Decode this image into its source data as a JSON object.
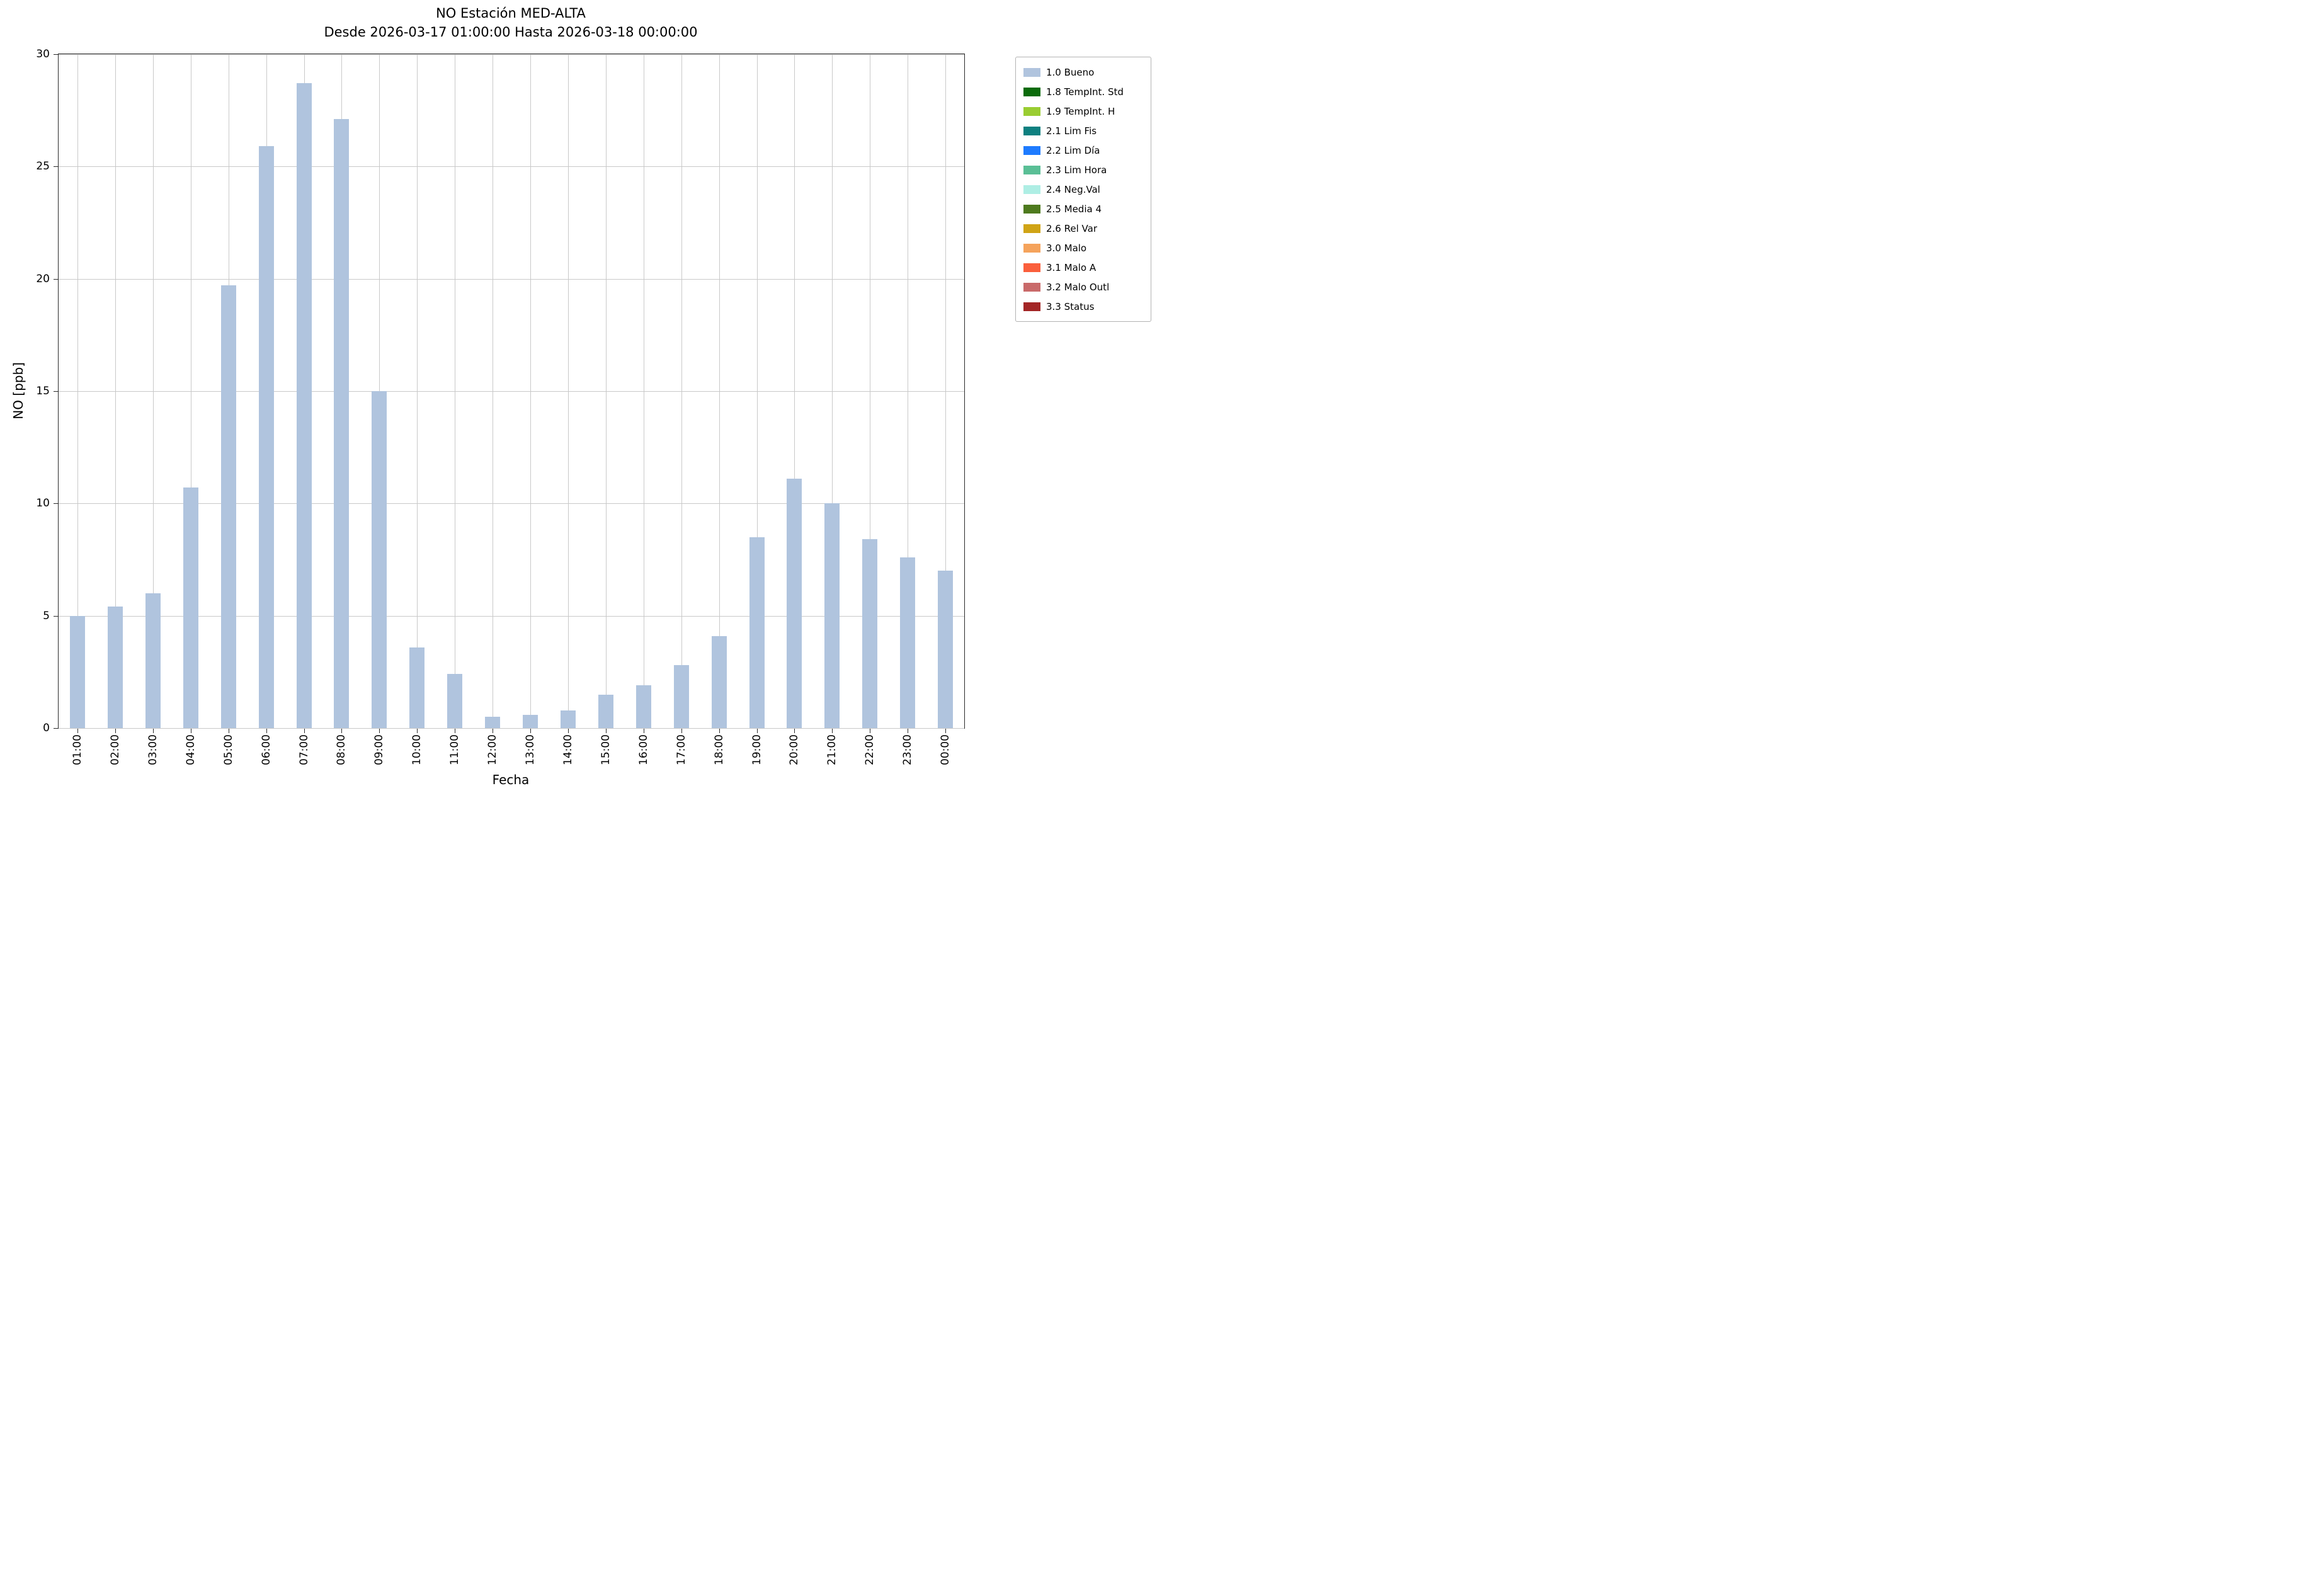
{
  "chart_data": {
    "type": "bar",
    "title": "NO Estación MED-ALTA",
    "subtitle": "Desde 2026-03-17 01:00:00 Hasta 2026-03-18 00:00:00",
    "xlabel": "Fecha",
    "ylabel": "NO [ppb]",
    "ylim": [
      0,
      30
    ],
    "yticks": [
      0,
      5,
      10,
      15,
      20,
      25,
      30
    ],
    "grid": true,
    "bar_color": "#b0c4de",
    "categories": [
      "01:00",
      "02:00",
      "03:00",
      "04:00",
      "05:00",
      "06:00",
      "07:00",
      "08:00",
      "09:00",
      "10:00",
      "11:00",
      "12:00",
      "13:00",
      "14:00",
      "15:00",
      "16:00",
      "17:00",
      "18:00",
      "19:00",
      "20:00",
      "21:00",
      "22:00",
      "23:00",
      "00:00"
    ],
    "values": [
      5.0,
      5.4,
      6.0,
      10.7,
      19.7,
      25.9,
      28.7,
      27.1,
      15.0,
      3.6,
      2.4,
      0.5,
      0.6,
      0.8,
      1.5,
      1.9,
      2.8,
      4.1,
      8.5,
      11.1,
      10.0,
      8.4,
      7.6,
      7.0
    ],
    "legend_position": "outside-right",
    "legend": [
      {
        "label": "1.0 Bueno",
        "color": "#b0c4de"
      },
      {
        "label": "1.8 TempInt. Std",
        "color": "#0b6b0b"
      },
      {
        "label": "1.9 TempInt. H",
        "color": "#9acd32"
      },
      {
        "label": "2.1 Lim Fis",
        "color": "#0e8080"
      },
      {
        "label": "2.2 Lim Día",
        "color": "#1e7bff"
      },
      {
        "label": "2.3 Lim Hora",
        "color": "#5abf96"
      },
      {
        "label": "2.4 Neg.Val",
        "color": "#aeeee4"
      },
      {
        "label": "2.5 Media 4",
        "color": "#4e7a1e"
      },
      {
        "label": "2.6 Rel Var",
        "color": "#d0a416"
      },
      {
        "label": "3.0 Malo",
        "color": "#f5a35c"
      },
      {
        "label": "3.1 Malo A",
        "color": "#fa5f3c"
      },
      {
        "label": "3.2 Malo Outl",
        "color": "#c96a6a"
      },
      {
        "label": "3.3 Status",
        "color": "#a32626"
      }
    ]
  }
}
